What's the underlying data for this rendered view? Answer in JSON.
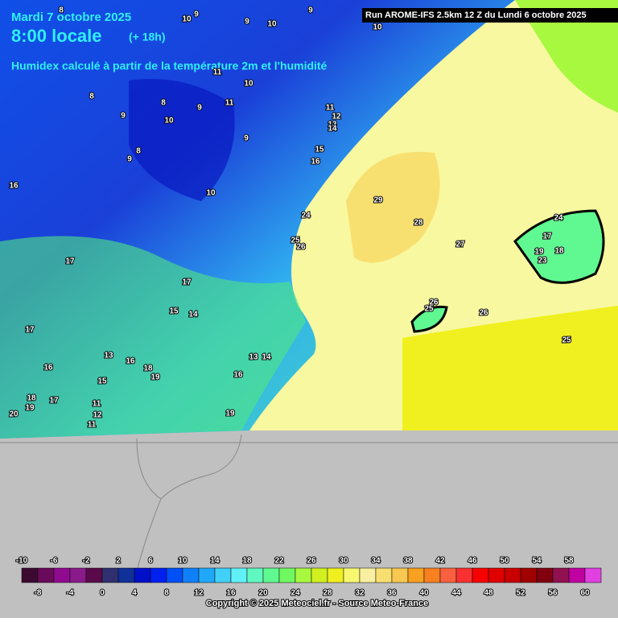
{
  "header": {
    "date": "Mardi 7 octobre 2025",
    "time": "8:00 locale",
    "lead": "(+ 18h)",
    "description": "Humidex calculé à partir de la température 2m et l'humidité",
    "run": "Run AROME-IFS 2.5km 12 Z du Lundi 6 octobre 2025"
  },
  "map": {
    "labels": [
      8,
      9,
      10,
      9,
      10,
      9,
      10,
      8,
      9,
      10,
      8,
      9,
      11,
      11,
      10,
      11,
      12,
      13,
      14,
      15,
      16,
      9,
      8,
      9,
      10,
      16,
      17,
      17,
      15,
      14,
      17,
      16,
      13,
      16,
      18,
      19,
      15,
      11,
      12,
      11,
      18,
      19,
      17,
      20,
      13,
      14,
      16,
      19,
      24,
      26,
      25,
      29,
      28,
      27,
      26,
      25,
      24,
      17,
      19,
      18,
      23,
      26,
      25
    ]
  },
  "colorbar": {
    "top_labels": [
      -10,
      -6,
      -2,
      2,
      6,
      10,
      14,
      18,
      22,
      26,
      30,
      34,
      38,
      42,
      46,
      50,
      54,
      58
    ],
    "bottom_labels": [
      -8,
      -4,
      0,
      4,
      8,
      12,
      16,
      20,
      24,
      28,
      32,
      36,
      40,
      44,
      48,
      52,
      56,
      60
    ],
    "colors": [
      "#3c0a30",
      "#6a0a5a",
      "#900a90",
      "#8a1a8a",
      "#5a0a4a",
      "#303070",
      "#10309a",
      "#0010c8",
      "#0020f0",
      "#0050f8",
      "#1080f8",
      "#20a8f8",
      "#40d0f8",
      "#60f0f8",
      "#60f8c0",
      "#60f890",
      "#70f860",
      "#a8f840",
      "#d0f020",
      "#f0f020",
      "#f8f870",
      "#f8f0a0",
      "#f8e070",
      "#f8c850",
      "#f8a020",
      "#f88020",
      "#f86040",
      "#f83030",
      "#f80000",
      "#e00000",
      "#c80000",
      "#a00000",
      "#800010",
      "#901050",
      "#c000a0",
      "#e040e0"
    ]
  },
  "footer": {
    "copyright": "Copyright © 2025 Meteociel.fr - Source Meteo-France"
  }
}
